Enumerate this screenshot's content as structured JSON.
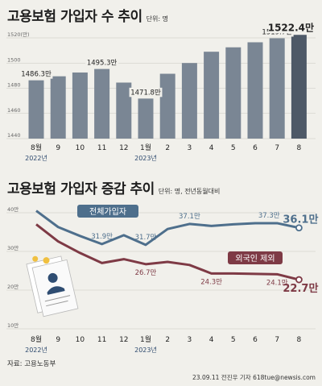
{
  "bar_title": "고용보험 가입자 수 추이",
  "bar_unit": "단위: 명",
  "line_title": "고용보험 가입자 증감 추이",
  "line_unit": "단위: 명, 전년동월대비",
  "source": "자료: 고용노동부",
  "credit": "23.09.11 전진우 기자 618tue@newsis.com",
  "x_labels": [
    "8월",
    "9",
    "10",
    "11",
    "12",
    "1월",
    "2",
    "3",
    "4",
    "5",
    "6",
    "7",
    "8"
  ],
  "year_labels": [
    "2022년",
    "2023년"
  ],
  "colors": {
    "bar": "#7a8694",
    "bar_last": "#4e5967",
    "series_total": "#4e6f8c",
    "series_foreign": "#7e3a45"
  },
  "chart_data": [
    {
      "type": "bar",
      "title": "고용보험 가입자 수 추이",
      "unit": "단위: 명",
      "categories": [
        "2022-08",
        "2022-09",
        "2022-10",
        "2022-11",
        "2022-12",
        "2023-01",
        "2023-02",
        "2023-03",
        "2023-04",
        "2023-05",
        "2023-06",
        "2023-07",
        "2023-08"
      ],
      "values": [
        1486.3,
        1489.5,
        1492.5,
        1495.3,
        1484.5,
        1471.8,
        1491.5,
        1500.0,
        1509.0,
        1512.5,
        1516.5,
        1519.7,
        1522.4
      ],
      "value_unit": "만",
      "ylim": [
        1440,
        1520
      ],
      "yticks": [
        1440,
        1460,
        1480,
        1500,
        1520
      ],
      "ytick_labels": [
        "1440",
        "1460",
        "1480",
        "1500",
        "1520(만)"
      ],
      "data_labels": [
        {
          "index": 0,
          "text": "1486.3만"
        },
        {
          "index": 3,
          "text": "1495.3만"
        },
        {
          "index": 5,
          "text": "1471.8만"
        },
        {
          "index": 11,
          "text": "1519.7만"
        },
        {
          "index": 12,
          "text": "1522.4만"
        }
      ],
      "grid": true
    },
    {
      "type": "line",
      "title": "고용보험 가입자 증감 추이",
      "unit": "단위: 명, 전년동월대비",
      "categories": [
        "2022-08",
        "2022-09",
        "2022-10",
        "2022-11",
        "2022-12",
        "2023-01",
        "2023-02",
        "2023-03",
        "2023-04",
        "2023-05",
        "2023-06",
        "2023-07",
        "2023-08"
      ],
      "ylim": [
        10,
        40
      ],
      "yticks": [
        10,
        20,
        30,
        40
      ],
      "ytick_labels": [
        "10만",
        "20만",
        "30만",
        "40만"
      ],
      "grid": true,
      "series": [
        {
          "name": "전체가입자",
          "values": [
            40.5,
            36.3,
            34.0,
            31.9,
            34.2,
            31.7,
            35.8,
            37.1,
            36.6,
            37.0,
            37.3,
            37.3,
            36.1
          ],
          "data_labels": [
            {
              "index": 3,
              "text": "31.9만"
            },
            {
              "index": 5,
              "text": "31.7만"
            },
            {
              "index": 7,
              "text": "37.1만"
            },
            {
              "index": 11,
              "text": "37.3만"
            },
            {
              "index": 12,
              "text": "36.1만"
            }
          ]
        },
        {
          "name": "외국인 제외",
          "values": [
            37.0,
            32.6,
            29.6,
            27.0,
            28.0,
            26.7,
            27.3,
            26.5,
            24.3,
            24.3,
            24.2,
            24.1,
            22.7
          ],
          "data_labels": [
            {
              "index": 5,
              "text": "26.7만"
            },
            {
              "index": 8,
              "text": "24.3만"
            },
            {
              "index": 11,
              "text": "24.1만"
            },
            {
              "index": 12,
              "text": "22.7만"
            }
          ]
        }
      ]
    }
  ]
}
